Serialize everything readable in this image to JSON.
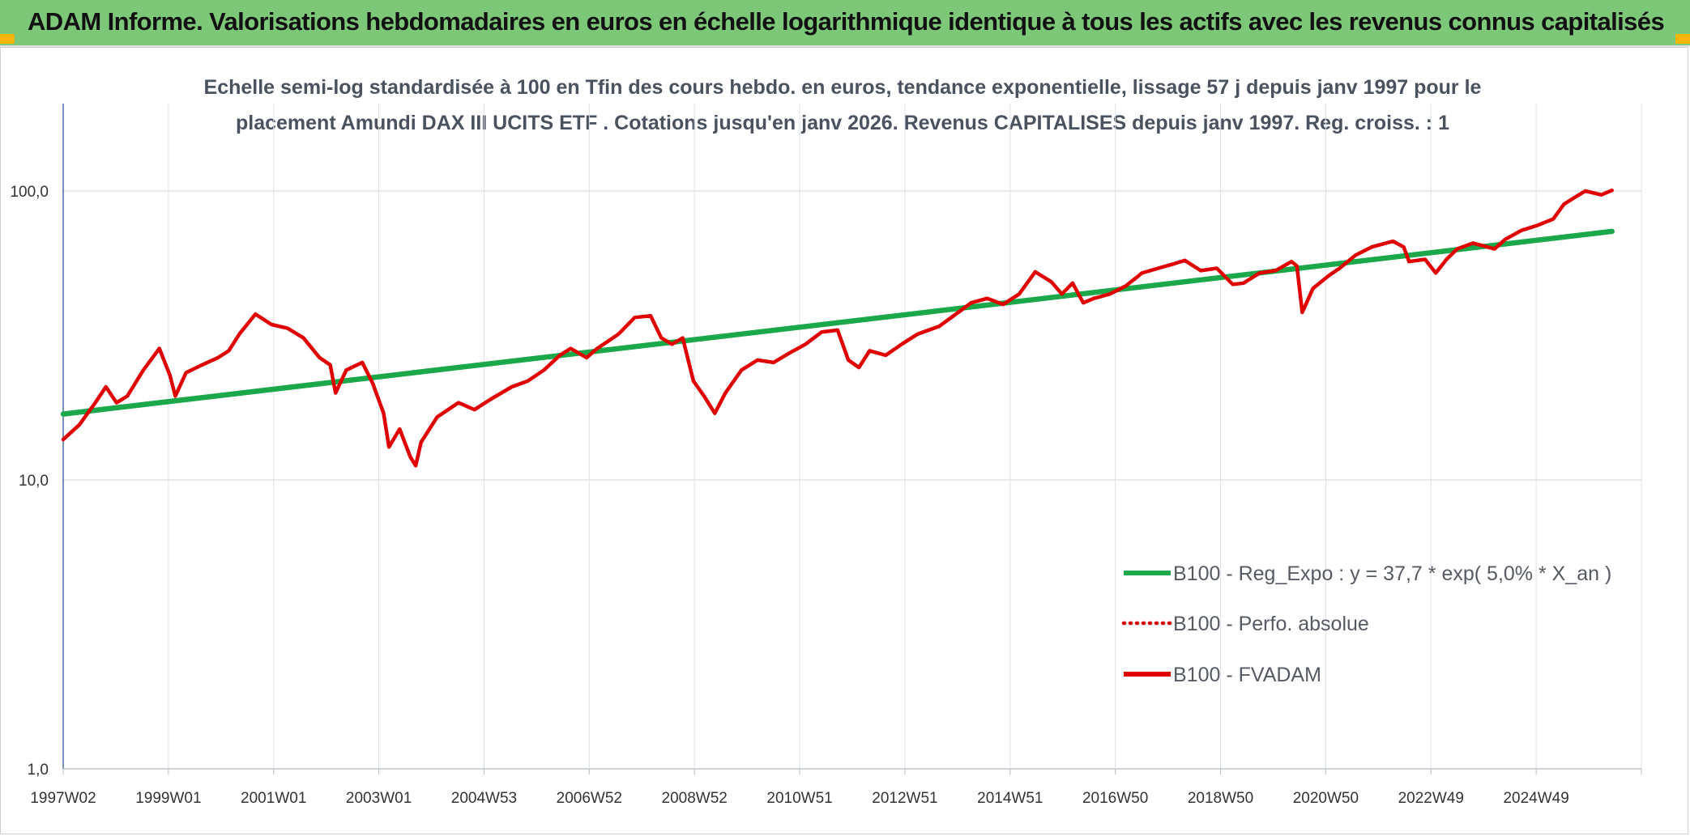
{
  "banner": {
    "title": "ADAM Informe. Valorisations hebdomadaires en euros en échelle logarithmique identique à tous les actifs avec les revenus connus capitalisés",
    "background": "#7dc878"
  },
  "chart_data": {
    "type": "line",
    "title": "Echelle semi-log standardisée à 100 en Tfin des cours hebdo. en euros, tendance exponentielle, lissage 57 j depuis janv 1997 pour le placement Amundi DAX III UCITS ETF . Cotations jusqu'en janv 2026. Revenus CAPITALISES depuis janv 1997. Reg. croiss. : 1",
    "y_scale": "log",
    "ylim": [
      1,
      200
    ],
    "xlim": [
      "1997-01",
      "2026-01"
    ],
    "y_ticks": [
      {
        "value": 1,
        "label": "1,0"
      },
      {
        "value": 10,
        "label": "10,0"
      },
      {
        "value": 100,
        "label": "100,0"
      }
    ],
    "x_ticks": [
      "1997W02",
      "1999W01",
      "2001W01",
      "2003W01",
      "2004W53",
      "2006W52",
      "2008W52",
      "2010W51",
      "2012W51",
      "2014W51",
      "2016W50",
      "2018W50",
      "2020W50",
      "2022W49",
      "2024W49"
    ],
    "grid": true,
    "legend_position": "bottom-right",
    "series": [
      {
        "name": "B100 - Reg_Expo : y = 37,7 * exp( 5,0% *  X_an )",
        "color": "#1aa84a",
        "style": "solid",
        "points": [
          [
            1997.0,
            16.9
          ],
          [
            2026.0,
            72.5
          ]
        ]
      },
      {
        "name": "B100 - Perfo. absolue",
        "color": "#e00000",
        "style": "dotted",
        "points": []
      },
      {
        "name": "B100 - FVADAM",
        "color": "#e00000",
        "style": "solid",
        "points": [
          [
            1997.0,
            13.8
          ],
          [
            1997.3,
            15.5
          ],
          [
            1997.6,
            18.5
          ],
          [
            1997.8,
            21.0
          ],
          [
            1998.0,
            18.5
          ],
          [
            1998.2,
            19.5
          ],
          [
            1998.5,
            24.0
          ],
          [
            1998.8,
            28.5
          ],
          [
            1999.0,
            23.0
          ],
          [
            1999.1,
            19.5
          ],
          [
            1999.3,
            23.5
          ],
          [
            1999.6,
            25.0
          ],
          [
            1999.9,
            26.5
          ],
          [
            2000.1,
            28.0
          ],
          [
            2000.3,
            32.0
          ],
          [
            2000.6,
            37.5
          ],
          [
            2000.9,
            34.5
          ],
          [
            2001.2,
            33.5
          ],
          [
            2001.5,
            31.0
          ],
          [
            2001.8,
            26.5
          ],
          [
            2002.0,
            25.0
          ],
          [
            2002.1,
            20.0
          ],
          [
            2002.3,
            24.0
          ],
          [
            2002.6,
            25.5
          ],
          [
            2002.8,
            21.5
          ],
          [
            2003.0,
            17.0
          ],
          [
            2003.1,
            13.0
          ],
          [
            2003.3,
            15.0
          ],
          [
            2003.5,
            12.0
          ],
          [
            2003.6,
            11.2
          ],
          [
            2003.7,
            13.5
          ],
          [
            2004.0,
            16.5
          ],
          [
            2004.4,
            18.5
          ],
          [
            2004.7,
            17.5
          ],
          [
            2005.0,
            19.0
          ],
          [
            2005.4,
            21.0
          ],
          [
            2005.7,
            22.0
          ],
          [
            2006.0,
            24.0
          ],
          [
            2006.3,
            27.0
          ],
          [
            2006.5,
            28.5
          ],
          [
            2006.8,
            26.5
          ],
          [
            2007.0,
            28.5
          ],
          [
            2007.4,
            32.0
          ],
          [
            2007.7,
            36.5
          ],
          [
            2008.0,
            37.0
          ],
          [
            2008.2,
            31.0
          ],
          [
            2008.4,
            29.5
          ],
          [
            2008.6,
            31.0
          ],
          [
            2008.8,
            22.0
          ],
          [
            2009.0,
            19.5
          ],
          [
            2009.2,
            17.0
          ],
          [
            2009.4,
            20.0
          ],
          [
            2009.7,
            24.0
          ],
          [
            2010.0,
            26.0
          ],
          [
            2010.3,
            25.5
          ],
          [
            2010.6,
            27.5
          ],
          [
            2010.9,
            29.5
          ],
          [
            2011.2,
            32.5
          ],
          [
            2011.5,
            33.0
          ],
          [
            2011.7,
            26.0
          ],
          [
            2011.9,
            24.5
          ],
          [
            2012.1,
            28.0
          ],
          [
            2012.4,
            27.0
          ],
          [
            2012.7,
            29.5
          ],
          [
            2013.0,
            32.0
          ],
          [
            2013.4,
            34.0
          ],
          [
            2013.8,
            38.5
          ],
          [
            2014.0,
            41.0
          ],
          [
            2014.3,
            42.5
          ],
          [
            2014.6,
            40.5
          ],
          [
            2014.9,
            44.0
          ],
          [
            2015.2,
            52.5
          ],
          [
            2015.5,
            48.5
          ],
          [
            2015.7,
            44.0
          ],
          [
            2015.9,
            48.0
          ],
          [
            2016.1,
            41.0
          ],
          [
            2016.3,
            42.5
          ],
          [
            2016.6,
            44.0
          ],
          [
            2016.9,
            47.0
          ],
          [
            2017.2,
            52.0
          ],
          [
            2017.5,
            54.0
          ],
          [
            2017.8,
            56.0
          ],
          [
            2018.0,
            57.5
          ],
          [
            2018.3,
            53.0
          ],
          [
            2018.6,
            54.0
          ],
          [
            2018.9,
            47.5
          ],
          [
            2019.1,
            48.0
          ],
          [
            2019.4,
            52.0
          ],
          [
            2019.7,
            53.0
          ],
          [
            2020.0,
            57.0
          ],
          [
            2020.1,
            55.0
          ],
          [
            2020.2,
            38.0
          ],
          [
            2020.4,
            46.0
          ],
          [
            2020.7,
            51.0
          ],
          [
            2020.9,
            54.0
          ],
          [
            2021.2,
            60.0
          ],
          [
            2021.5,
            64.0
          ],
          [
            2021.9,
            67.0
          ],
          [
            2022.1,
            64.0
          ],
          [
            2022.2,
            57.0
          ],
          [
            2022.5,
            58.0
          ],
          [
            2022.7,
            52.0
          ],
          [
            2022.9,
            58.0
          ],
          [
            2023.1,
            63.0
          ],
          [
            2023.4,
            66.0
          ],
          [
            2023.8,
            63.0
          ],
          [
            2024.0,
            68.0
          ],
          [
            2024.3,
            73.0
          ],
          [
            2024.6,
            76.0
          ],
          [
            2024.9,
            80.0
          ],
          [
            2025.1,
            90.0
          ],
          [
            2025.3,
            95.0
          ],
          [
            2025.5,
            100.0
          ],
          [
            2025.8,
            97.0
          ],
          [
            2026.0,
            100.5
          ]
        ]
      }
    ]
  }
}
